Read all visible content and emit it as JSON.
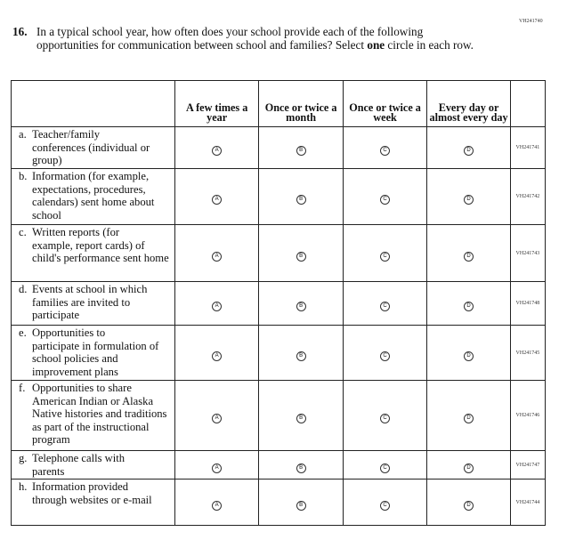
{
  "form_code": "VH241740",
  "question": {
    "number": "16.",
    "text_before": "In a typical school year, how often does your school provide each of the following opportunities for communication between school and families? Select ",
    "emphasis": "one",
    "text_after": " circle in each row."
  },
  "columns": [
    "A few times a year",
    "Once or twice a month",
    "Once or twice a week",
    "Every day or almost every day"
  ],
  "choice_letters": [
    "A",
    "B",
    "C",
    "D"
  ],
  "rows": [
    {
      "letter": "a.",
      "first": "Teacher/family",
      "rest": "conferences (individual or group)",
      "code": "VH241741"
    },
    {
      "letter": "b.",
      "first": "Information (for example,",
      "rest": "expectations, procedures, calendars) sent home about school",
      "code": "VH241742"
    },
    {
      "letter": "c.",
      "first": "Written reports (for",
      "rest": "example, report cards) of child's performance sent home",
      "code": "VH241743"
    },
    {
      "letter": "d.",
      "first": "Events at school in which",
      "rest": "families are invited to participate",
      "code": "VH241748"
    },
    {
      "letter": "e.",
      "first": "Opportunities to",
      "rest": "participate in formulation of school policies and improvement plans",
      "code": "VH241745"
    },
    {
      "letter": "f.",
      "first": "Opportunities to share",
      "rest": "American Indian or Alaska Native histories and traditions as part of the instructional program",
      "code": "VH241746"
    },
    {
      "letter": "g.",
      "first": "Telephone calls with",
      "rest": "parents",
      "code": "VH241747"
    },
    {
      "letter": "h.",
      "first": "Information provided",
      "rest": "through websites or e-mail",
      "code": "VH241744"
    }
  ]
}
